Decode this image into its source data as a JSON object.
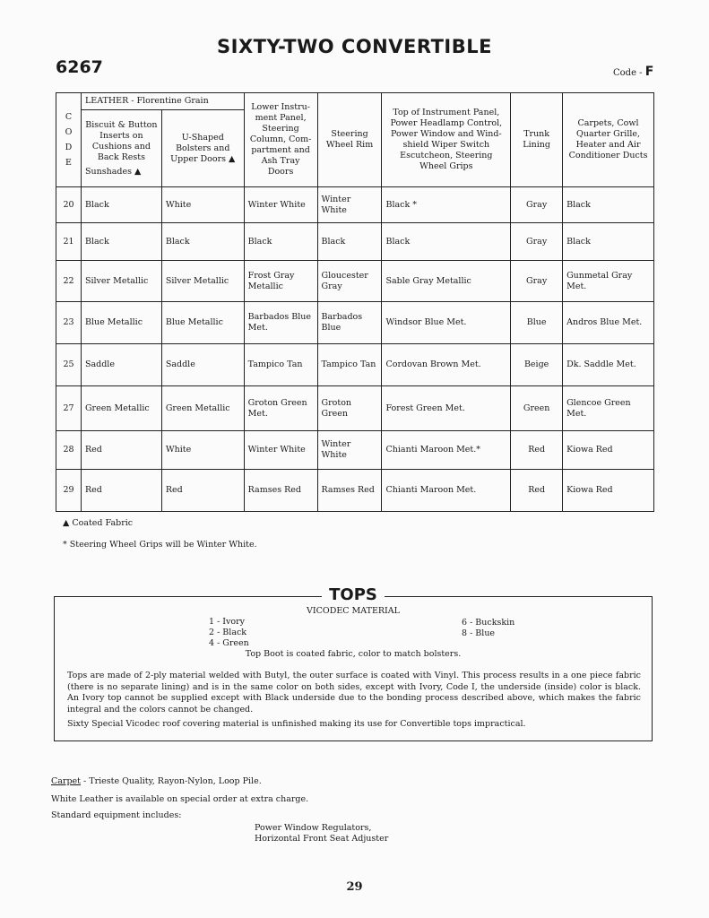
{
  "title": "SIXTY-TWO CONVERTIBLE",
  "model": "6267",
  "code_label": "Code -",
  "code_value": "F",
  "table": {
    "code_header": "CODE",
    "leather_header": "LEATHER - Florentine Grain",
    "headers": [
      "Biscuit & Button Inserts on Cushions and Back Rests",
      "U-Shaped Bolsters and Upper Doors ▲",
      "Lower Instru-ment Panel, Steering Column, Com-partment and Ash Tray Doors",
      "Steering Wheel Rim",
      "Top of Instrument Panel, Power Headlamp Control, Power Window and Wind-shield Wiper Switch Escutcheon, Steering Wheel Grips",
      "Trunk Lining",
      "Carpets, Cowl Quarter Grille, Heater and Air Conditioner Ducts"
    ],
    "sunshades": "Sunshades ▲",
    "rows": [
      [
        "20",
        "Black",
        "White",
        "Winter White",
        "Winter White",
        "Black *",
        "Gray",
        "Black"
      ],
      [
        "21",
        "Black",
        "Black",
        "Black",
        "Black",
        "Black",
        "Gray",
        "Black"
      ],
      [
        "22",
        "Silver Metallic",
        "Silver Metallic",
        "Frost Gray Metallic",
        "Gloucester Gray",
        "Sable Gray Metallic",
        "Gray",
        "Gunmetal Gray Met."
      ],
      [
        "23",
        "Blue Metallic",
        "Blue Metallic",
        "Barbados Blue Met.",
        "Barbados Blue",
        "Windsor Blue Met.",
        "Blue",
        "Andros Blue Met."
      ],
      [
        "25",
        "Saddle",
        "Saddle",
        "Tampico Tan",
        "Tampico Tan",
        "Cordovan Brown Met.",
        "Beige",
        "Dk. Saddle Met."
      ],
      [
        "27",
        "Green Metallic",
        "Green Metallic",
        "Groton Green Met.",
        "Groton Green",
        "Forest Green Met.",
        "Green",
        "Glencoe Green Met."
      ],
      [
        "28",
        "Red",
        "White",
        "Winter White",
        "Winter White",
        "Chianti Maroon Met.*",
        "Red",
        "Kiowa Red"
      ],
      [
        "29",
        "Red",
        "Red",
        "Ramses Red",
        "Ramses Red",
        "Chianti Maroon Met.",
        "Red",
        "Kiowa Red"
      ]
    ]
  },
  "notes": [
    "▲ Coated Fabric",
    "* Steering Wheel Grips will be Winter White."
  ],
  "tops": {
    "heading": "TOPS",
    "material": "VICODEC MATERIAL",
    "colors_left": [
      "1 - Ivory",
      "2 - Black",
      "4 - Green"
    ],
    "colors_right": [
      "6 - Buckskin",
      "8 - Blue"
    ],
    "boot": "Top Boot is coated fabric, color to match bolsters.",
    "para1": "Tops are made of 2-ply material welded with Butyl, the outer surface is coated with Vinyl. This process results in a one piece fabric (there is no separate lining) and is in the same color on both sides, except with Ivory, Code I, the underside (inside) color is black. An Ivory top cannot be supplied except with Black underside due to the bonding process described above, which makes the fabric integral and the colors cannot be changed.",
    "para2": "Sixty Special Vicodec roof covering material is unfinished making its use for Convertible tops impractical."
  },
  "bottom": {
    "carpet_label": "Carpet",
    "carpet_text": " - Trieste Quality, Rayon-Nylon, Loop Pile.",
    "white_leather": "White Leather is available on special order at extra charge.",
    "standard": "Standard equipment includes:",
    "equipment": [
      "Power Window Regulators,",
      "Horizontal Front Seat Adjuster"
    ]
  },
  "page_number": "29"
}
